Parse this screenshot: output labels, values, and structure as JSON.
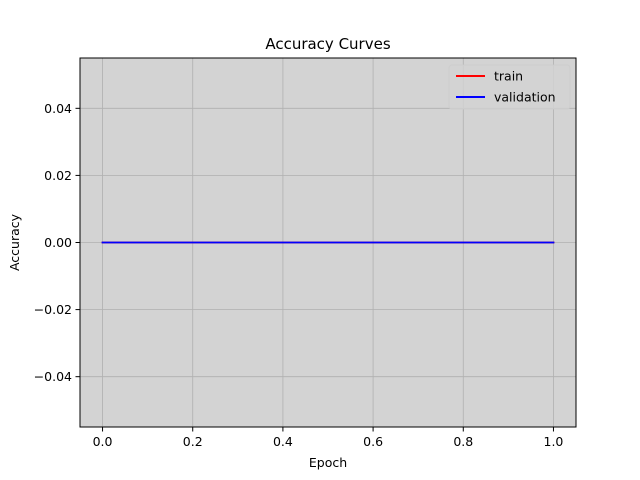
{
  "chart_data": {
    "type": "line",
    "title": "Accuracy Curves",
    "xlabel": "Epoch",
    "ylabel": "Accuracy",
    "xlim": [
      -0.05,
      1.05
    ],
    "ylim": [
      -0.055,
      0.055
    ],
    "xticks": [
      0.0,
      0.2,
      0.4,
      0.6,
      0.8,
      1.0
    ],
    "xtick_labels": [
      "0.0",
      "0.2",
      "0.4",
      "0.6",
      "0.8",
      "1.0"
    ],
    "yticks": [
      -0.04,
      -0.02,
      0.0,
      0.02,
      0.04
    ],
    "ytick_labels": [
      "−0.04",
      "−0.02",
      "0.00",
      "0.02",
      "0.04"
    ],
    "grid": true,
    "legend_position": "top-right",
    "plot_background": "#d3d3d3",
    "grid_color": "#b0b0b0",
    "series": [
      {
        "name": "train",
        "color": "#ff0000",
        "x": [
          0,
          1
        ],
        "y": [
          0.0,
          0.0
        ]
      },
      {
        "name": "validation",
        "color": "#0000ff",
        "x": [
          0,
          1
        ],
        "y": [
          0.0,
          0.0
        ]
      }
    ]
  }
}
